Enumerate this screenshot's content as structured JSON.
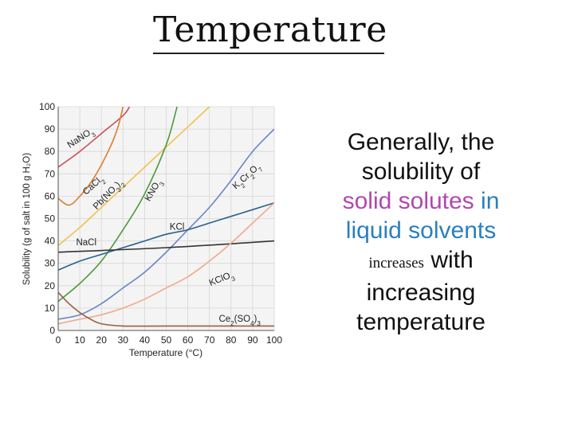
{
  "title": "Temperature",
  "body": {
    "line1": "Generally, the",
    "line2": "solubility of",
    "solid_solutes": "solid solutes",
    "in_word": "in",
    "liquid_solvents": "liquid solvents",
    "increases": "increases",
    "with": "with",
    "line6": "increasing",
    "line7": "temperature"
  },
  "colors": {
    "pink": "#b048b0",
    "blue": "#2a7fbf"
  },
  "chart_data": {
    "type": "line",
    "xlabel": "Temperature (°C)",
    "ylabel": "Solubility (g of salt in 100 g H₂O)",
    "xlim": [
      0,
      100
    ],
    "ylim": [
      0,
      100
    ],
    "xticks": [
      0,
      10,
      20,
      30,
      40,
      50,
      60,
      70,
      80,
      90,
      100
    ],
    "yticks": [
      0,
      10,
      20,
      30,
      40,
      50,
      60,
      70,
      80,
      90,
      100
    ],
    "grid": true,
    "series": [
      {
        "name": "NaNO3",
        "color": "#d24b55",
        "points": [
          [
            0,
            73
          ],
          [
            10,
            80
          ],
          [
            20,
            88
          ],
          [
            30,
            96
          ],
          [
            33,
            100
          ]
        ]
      },
      {
        "name": "CaCl2",
        "color": "#d98030",
        "points": [
          [
            0,
            59
          ],
          [
            5,
            56
          ],
          [
            10,
            60
          ],
          [
            15,
            66
          ],
          [
            20,
            74
          ],
          [
            25,
            84
          ],
          [
            28,
            92
          ],
          [
            30,
            100
          ]
        ]
      },
      {
        "name": "Pb(NO3)2",
        "color": "#f2c04a",
        "points": [
          [
            0,
            38
          ],
          [
            10,
            46
          ],
          [
            20,
            55
          ],
          [
            30,
            64
          ],
          [
            40,
            73
          ],
          [
            50,
            82
          ],
          [
            60,
            91
          ],
          [
            70,
            100
          ]
        ]
      },
      {
        "name": "KNO3",
        "color": "#4c9a3a",
        "points": [
          [
            0,
            13
          ],
          [
            10,
            21
          ],
          [
            20,
            31
          ],
          [
            30,
            45
          ],
          [
            40,
            61
          ],
          [
            50,
            83
          ],
          [
            55,
            100
          ]
        ]
      },
      {
        "name": "K2Cr2O7",
        "color": "#6a86c8",
        "points": [
          [
            0,
            5
          ],
          [
            10,
            7
          ],
          [
            20,
            12
          ],
          [
            30,
            19
          ],
          [
            40,
            26
          ],
          [
            50,
            35
          ],
          [
            60,
            45
          ],
          [
            70,
            55
          ],
          [
            80,
            67
          ],
          [
            90,
            80
          ],
          [
            100,
            90
          ]
        ]
      },
      {
        "name": "KCl",
        "color": "#2a5f8f",
        "points": [
          [
            0,
            27
          ],
          [
            10,
            31
          ],
          [
            20,
            34
          ],
          [
            30,
            37
          ],
          [
            40,
            40
          ],
          [
            50,
            43
          ],
          [
            60,
            45
          ],
          [
            70,
            48
          ],
          [
            80,
            51
          ],
          [
            90,
            54
          ],
          [
            100,
            57
          ]
        ]
      },
      {
        "name": "NaCl",
        "color": "#333333",
        "points": [
          [
            0,
            35
          ],
          [
            50,
            37
          ],
          [
            100,
            40
          ]
        ]
      },
      {
        "name": "KClO3",
        "color": "#f2a88a",
        "points": [
          [
            0,
            3
          ],
          [
            10,
            5
          ],
          [
            20,
            7
          ],
          [
            30,
            10
          ],
          [
            40,
            14
          ],
          [
            50,
            19
          ],
          [
            60,
            24
          ],
          [
            70,
            31
          ],
          [
            80,
            39
          ],
          [
            90,
            48
          ],
          [
            100,
            57
          ]
        ]
      },
      {
        "name": "Ce2(SO4)3",
        "color": "#9a6040",
        "points": [
          [
            0,
            17
          ],
          [
            5,
            12
          ],
          [
            10,
            8
          ],
          [
            15,
            5
          ],
          [
            20,
            3
          ],
          [
            30,
            2
          ],
          [
            50,
            2
          ],
          [
            100,
            2
          ]
        ]
      }
    ],
    "series_labels": [
      {
        "text": "NaNO3",
        "x": 11,
        "y": 85,
        "rotate": -33
      },
      {
        "text": "CaCl2",
        "x": 17,
        "y": 64,
        "rotate": -42
      },
      {
        "text": "Pb(NO3)2",
        "x": 24,
        "y": 60,
        "rotate": -46
      },
      {
        "text": "KNO3",
        "x": 45,
        "y": 62,
        "rotate": -60
      },
      {
        "text": "K2Cr2O7",
        "x": 88,
        "y": 68,
        "rotate": -42
      },
      {
        "text": "KCl",
        "x": 55,
        "y": 45,
        "rotate": 0
      },
      {
        "text": "NaCl",
        "x": 13,
        "y": 38,
        "rotate": 0
      },
      {
        "text": "KClO3",
        "x": 76,
        "y": 22,
        "rotate": -22
      },
      {
        "text": "Ce2(SO4)3",
        "x": 84,
        "y": 4,
        "rotate": 0
      }
    ]
  }
}
